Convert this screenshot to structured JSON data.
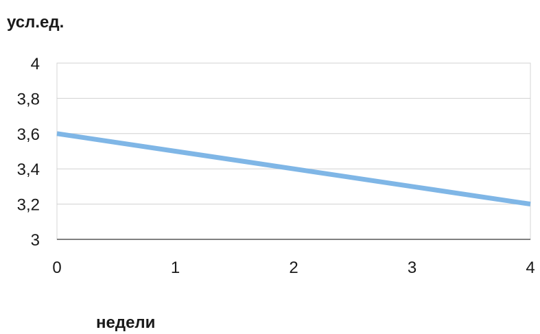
{
  "chart_data": {
    "type": "line",
    "ylabel": "усл.ед.",
    "xlabel": "недели",
    "x": [
      0,
      1,
      2,
      3,
      4
    ],
    "series": [
      {
        "values": [
          3.6,
          3.5,
          3.4,
          3.3,
          3.2
        ],
        "color": "#7fb6e6"
      }
    ],
    "xlim": [
      0,
      4
    ],
    "ylim": [
      3,
      4
    ],
    "x_ticks": [
      "0",
      "1",
      "2",
      "3",
      "4"
    ],
    "y_ticks": [
      "3",
      "3,2",
      "3,4",
      "3,6",
      "3,8",
      "4"
    ],
    "grid": true,
    "legend": "none"
  }
}
